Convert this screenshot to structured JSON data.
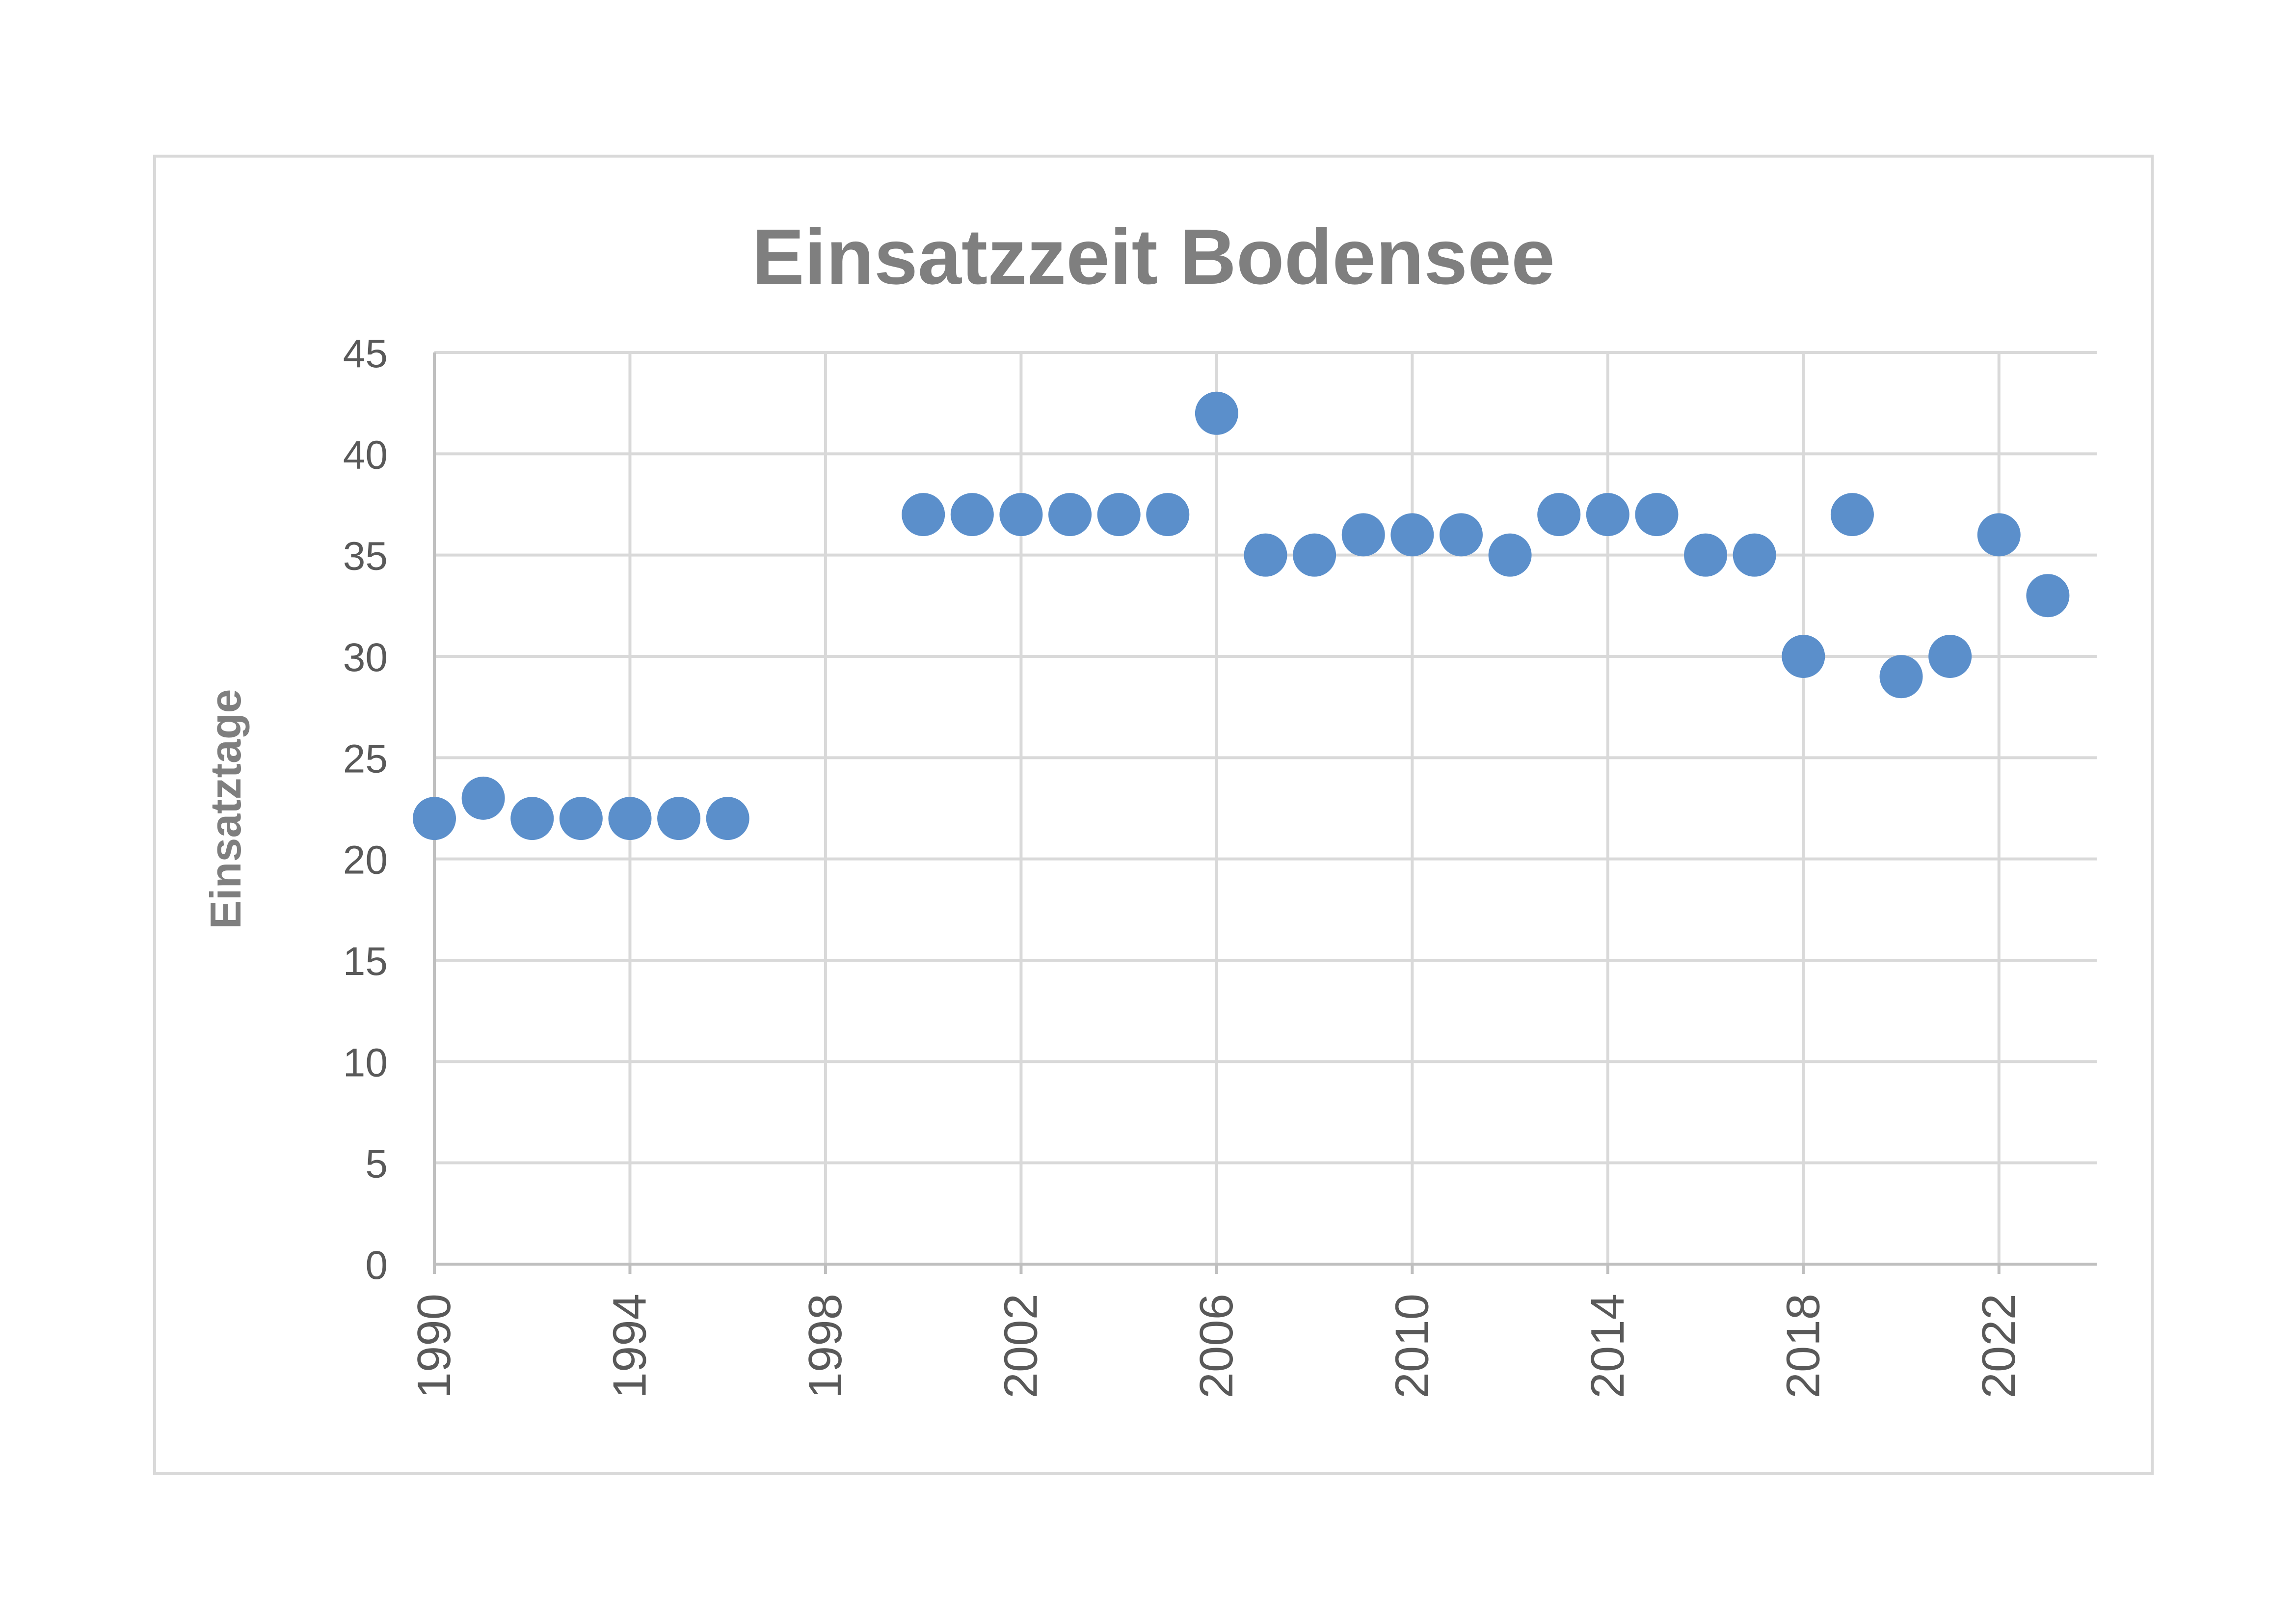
{
  "chart_data": {
    "type": "scatter",
    "title": "Einsatzzeit Bodensee",
    "xlabel": "",
    "ylabel": "Einsatztage",
    "xlim": [
      1990,
      2024
    ],
    "ylim": [
      0,
      45
    ],
    "x_ticks": [
      1990,
      1994,
      1998,
      2002,
      2006,
      2010,
      2014,
      2018,
      2022
    ],
    "y_ticks": [
      0,
      5,
      10,
      15,
      20,
      25,
      30,
      35,
      40,
      45
    ],
    "grid": true,
    "marker_color": "#5b8fcb",
    "series": [
      {
        "x": [
          1990,
          1991,
          1992,
          1993,
          1994,
          1995,
          1996,
          2000,
          2001,
          2002,
          2003,
          2004,
          2005,
          2006,
          2007,
          2008,
          2009,
          2010,
          2011,
          2012,
          2013,
          2014,
          2015,
          2016,
          2017,
          2018,
          2019,
          2020,
          2021,
          2022,
          2023
        ],
        "y": [
          22,
          23,
          22,
          22,
          22,
          22,
          22,
          37,
          37,
          37,
          37,
          37,
          37,
          42,
          35,
          35,
          36,
          36,
          36,
          35,
          37,
          37,
          37,
          35,
          35,
          30,
          37,
          29,
          30,
          36,
          33
        ]
      }
    ]
  }
}
